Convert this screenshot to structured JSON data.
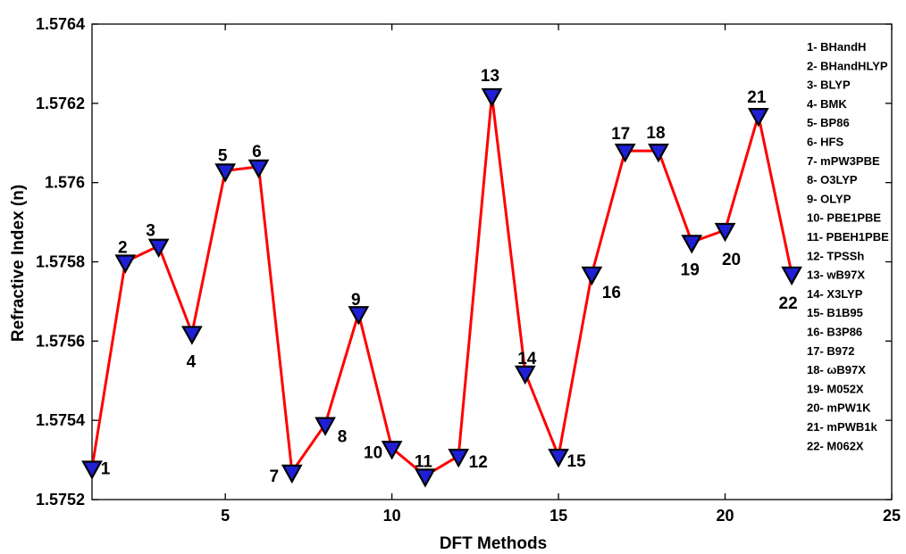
{
  "chart_data": {
    "type": "line",
    "xlabel": "DFT Methods",
    "ylabel": "Refractive Index (n)",
    "xlim": [
      1,
      25
    ],
    "ylim": [
      1.5752,
      1.5764
    ],
    "xticks": [
      5,
      10,
      15,
      20,
      25
    ],
    "yticks": [
      1.5752,
      1.5754,
      1.5756,
      1.5758,
      1.576,
      1.5762,
      1.5764
    ],
    "ytick_labels": [
      "1.5752",
      "1.5754",
      "1.5756",
      "1.5758",
      "1.576",
      "1.5762",
      "1.5764"
    ],
    "grid": false,
    "line_color": "#ff0000",
    "marker": "triangle-down",
    "marker_fill": "#1f1fd6",
    "marker_edge": "#000000",
    "series": [
      {
        "x": [
          1,
          2,
          3,
          4,
          5,
          6,
          7,
          8,
          9,
          10,
          11,
          12,
          13,
          14,
          15,
          16,
          17,
          18,
          19,
          20,
          21,
          22
        ],
        "values": [
          1.57528,
          1.5758,
          1.57584,
          1.57562,
          1.57603,
          1.57604,
          1.57527,
          1.57539,
          1.57567,
          1.57533,
          1.57526,
          1.57531,
          1.57622,
          1.57552,
          1.57531,
          1.57577,
          1.57608,
          1.57608,
          1.57585,
          1.57588,
          1.57617,
          1.57577
        ],
        "point_labels": [
          "1",
          "2",
          "3",
          "4",
          "5",
          "6",
          "7",
          "8",
          "9",
          "10",
          "11",
          "12",
          "13",
          "14",
          "15",
          "16",
          "17",
          "18",
          "19",
          "20",
          "21",
          "22"
        ]
      }
    ],
    "legend_position": "top-right",
    "legend": [
      "1- BHandH",
      "2- BHandHLYP",
      "3- BLYP",
      "4- BMK",
      "5- BP86",
      "6- HFS",
      "7- mPW3PBE",
      "8- O3LYP",
      "9- OLYP",
      "10- PBE1PBE",
      "11- PBEH1PBE",
      "12- TPSSh",
      "13- wB97X",
      "14- X3LYP",
      "15- B1B95",
      "16- B3P86",
      "17- B972",
      "18- ωB97X",
      "19- M052X",
      "20- mPW1K",
      "21- mPWB1k",
      "22- M062X"
    ]
  }
}
